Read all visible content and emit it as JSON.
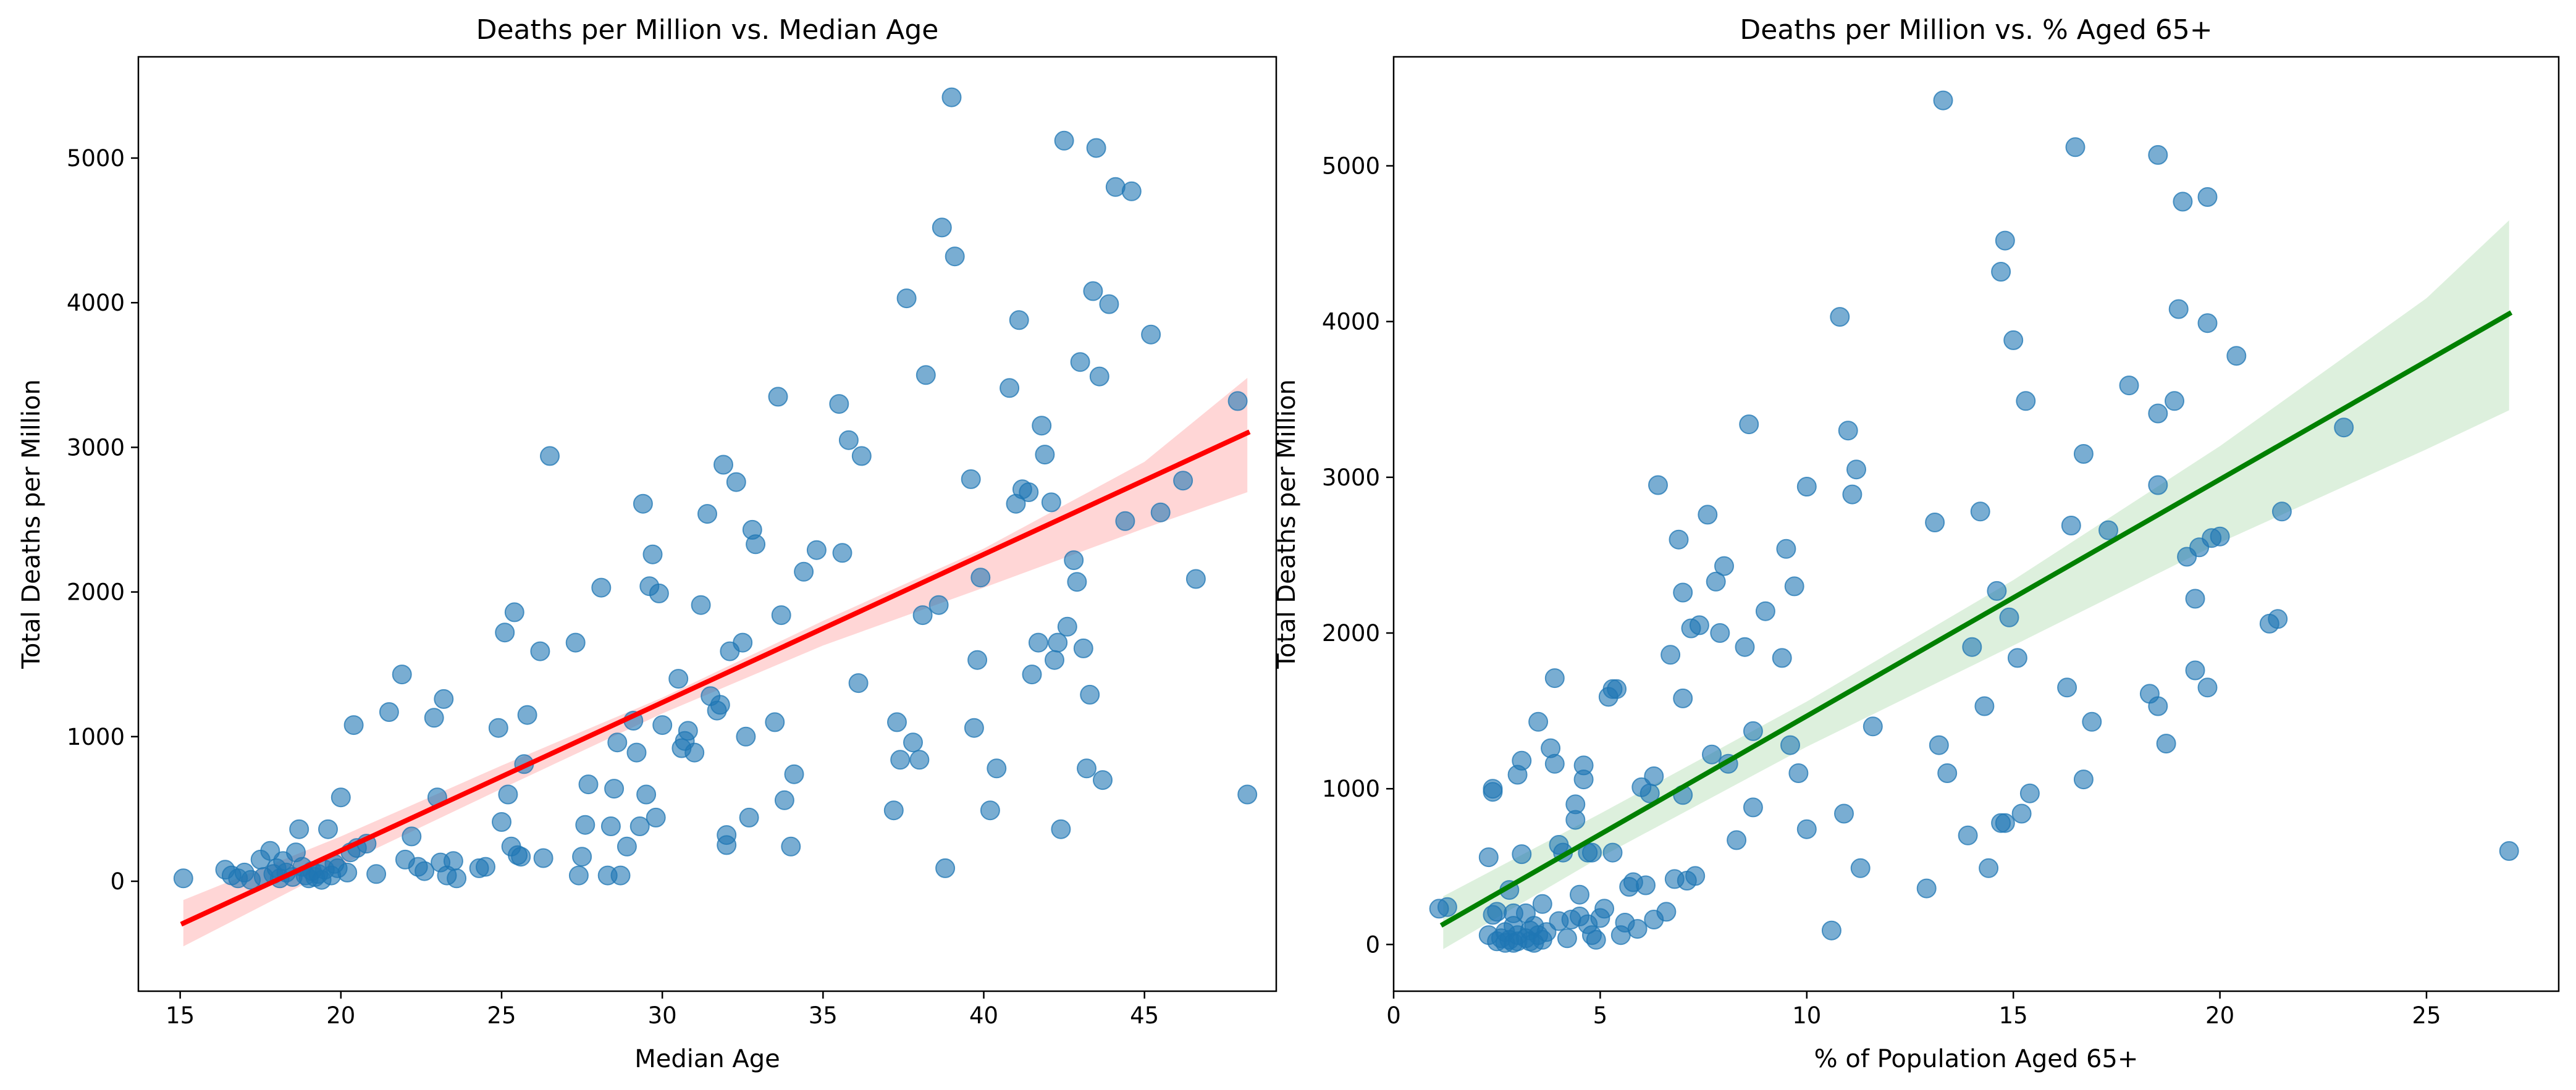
{
  "chart_data": [
    {
      "type": "scatter",
      "title": "Deaths per Million vs. Median Age",
      "xlabel": "Median Age",
      "ylabel": "Total Deaths per Million",
      "xlim": [
        13.7,
        49.1
      ],
      "ylim": [
        -760,
        5700
      ],
      "xticks": [
        15,
        20,
        25,
        30,
        35,
        40,
        45
      ],
      "yticks": [
        0,
        1000,
        2000,
        3000,
        4000,
        5000
      ],
      "point_color": "#1f77b4",
      "fit_color": "#ff0000",
      "ci_color": "#ff0000",
      "grid": false,
      "fit_line": {
        "x": [
          15.1,
          48.2
        ],
        "y": [
          -290,
          3100
        ]
      },
      "ci_band": {
        "x": [
          15.1,
          20,
          25,
          30,
          35,
          40,
          45,
          48.2
        ],
        "lower": [
          -450,
          110,
          640,
          1160,
          1630,
          2030,
          2440,
          2690
        ],
        "upper": [
          -130,
          310,
          800,
          1270,
          1800,
          2300,
          2900,
          3480
        ]
      },
      "points": [
        [
          15.1,
          20
        ],
        [
          16.4,
          80
        ],
        [
          16.6,
          40
        ],
        [
          16.8,
          20
        ],
        [
          17.0,
          60
        ],
        [
          17.2,
          10
        ],
        [
          17.5,
          150
        ],
        [
          17.6,
          30
        ],
        [
          17.8,
          210
        ],
        [
          17.9,
          50
        ],
        [
          18.0,
          90
        ],
        [
          18.1,
          20
        ],
        [
          18.2,
          140
        ],
        [
          18.3,
          60
        ],
        [
          18.5,
          30
        ],
        [
          18.6,
          200
        ],
        [
          18.7,
          360
        ],
        [
          18.8,
          100
        ],
        [
          18.9,
          40
        ],
        [
          19.0,
          20
        ],
        [
          19.1,
          70
        ],
        [
          19.2,
          30
        ],
        [
          19.3,
          50
        ],
        [
          19.4,
          10
        ],
        [
          19.5,
          80
        ],
        [
          19.6,
          360
        ],
        [
          19.7,
          40
        ],
        [
          19.8,
          120
        ],
        [
          19.9,
          90
        ],
        [
          20.0,
          580
        ],
        [
          20.2,
          60
        ],
        [
          20.3,
          200
        ],
        [
          20.4,
          1080
        ],
        [
          20.5,
          230
        ],
        [
          20.8,
          260
        ],
        [
          21.1,
          50
        ],
        [
          21.5,
          1170
        ],
        [
          21.9,
          1430
        ],
        [
          22.0,
          150
        ],
        [
          22.2,
          310
        ],
        [
          22.4,
          100
        ],
        [
          22.6,
          70
        ],
        [
          22.9,
          1130
        ],
        [
          23.0,
          580
        ],
        [
          23.1,
          130
        ],
        [
          23.2,
          1260
        ],
        [
          23.3,
          40
        ],
        [
          23.5,
          140
        ],
        [
          23.6,
          20
        ],
        [
          24.3,
          90
        ],
        [
          24.5,
          100
        ],
        [
          24.9,
          1060
        ],
        [
          25.0,
          410
        ],
        [
          25.1,
          1720
        ],
        [
          25.2,
          600
        ],
        [
          25.3,
          240
        ],
        [
          25.4,
          1860
        ],
        [
          25.5,
          180
        ],
        [
          25.6,
          170
        ],
        [
          25.7,
          810
        ],
        [
          25.8,
          1150
        ],
        [
          26.2,
          1590
        ],
        [
          26.3,
          160
        ],
        [
          26.5,
          2940
        ],
        [
          27.3,
          1650
        ],
        [
          27.4,
          40
        ],
        [
          27.5,
          170
        ],
        [
          27.6,
          390
        ],
        [
          27.7,
          670
        ],
        [
          28.1,
          2030
        ],
        [
          28.3,
          40
        ],
        [
          28.4,
          380
        ],
        [
          28.5,
          640
        ],
        [
          28.6,
          960
        ],
        [
          28.7,
          40
        ],
        [
          28.9,
          240
        ],
        [
          29.1,
          1110
        ],
        [
          29.2,
          890
        ],
        [
          29.3,
          380
        ],
        [
          29.4,
          2610
        ],
        [
          29.5,
          600
        ],
        [
          29.6,
          2040
        ],
        [
          29.7,
          2260
        ],
        [
          29.8,
          440
        ],
        [
          29.9,
          1990
        ],
        [
          30.0,
          1080
        ],
        [
          30.5,
          1400
        ],
        [
          30.6,
          920
        ],
        [
          30.7,
          970
        ],
        [
          30.8,
          1040
        ],
        [
          31.0,
          890
        ],
        [
          31.2,
          1910
        ],
        [
          31.4,
          2540
        ],
        [
          31.5,
          1280
        ],
        [
          31.7,
          1180
        ],
        [
          31.8,
          1220
        ],
        [
          31.9,
          2880
        ],
        [
          32.0,
          320
        ],
        [
          32.0,
          250
        ],
        [
          32.1,
          1590
        ],
        [
          32.3,
          2760
        ],
        [
          32.5,
          1650
        ],
        [
          32.6,
          1000
        ],
        [
          32.7,
          440
        ],
        [
          32.8,
          2430
        ],
        [
          32.9,
          2330
        ],
        [
          33.5,
          1100
        ],
        [
          33.6,
          3350
        ],
        [
          33.7,
          1840
        ],
        [
          33.8,
          560
        ],
        [
          34.0,
          240
        ],
        [
          34.1,
          740
        ],
        [
          34.4,
          2140
        ],
        [
          34.8,
          2290
        ],
        [
          35.5,
          3300
        ],
        [
          35.6,
          2270
        ],
        [
          35.8,
          3050
        ],
        [
          36.1,
          1370
        ],
        [
          36.2,
          2940
        ],
        [
          37.2,
          490
        ],
        [
          37.3,
          1100
        ],
        [
          37.4,
          840
        ],
        [
          37.6,
          4030
        ],
        [
          37.8,
          960
        ],
        [
          38.0,
          840
        ],
        [
          38.1,
          1840
        ],
        [
          38.2,
          3500
        ],
        [
          38.6,
          1910
        ],
        [
          38.7,
          4520
        ],
        [
          38.8,
          90
        ],
        [
          39.0,
          5420
        ],
        [
          39.1,
          4320
        ],
        [
          39.6,
          2780
        ],
        [
          39.7,
          1060
        ],
        [
          39.8,
          1530
        ],
        [
          39.9,
          2100
        ],
        [
          40.2,
          490
        ],
        [
          40.4,
          780
        ],
        [
          40.8,
          3410
        ],
        [
          41.0,
          2610
        ],
        [
          41.1,
          3880
        ],
        [
          41.2,
          2710
        ],
        [
          41.4,
          2690
        ],
        [
          41.5,
          1430
        ],
        [
          41.7,
          1650
        ],
        [
          41.8,
          3150
        ],
        [
          41.9,
          2950
        ],
        [
          42.1,
          2620
        ],
        [
          42.2,
          1530
        ],
        [
          42.3,
          1650
        ],
        [
          42.4,
          360
        ],
        [
          42.5,
          5120
        ],
        [
          42.6,
          1760
        ],
        [
          42.8,
          2220
        ],
        [
          42.9,
          2070
        ],
        [
          43.0,
          3590
        ],
        [
          43.1,
          1610
        ],
        [
          43.2,
          780
        ],
        [
          43.3,
          1290
        ],
        [
          43.4,
          4080
        ],
        [
          43.5,
          5070
        ],
        [
          43.6,
          3490
        ],
        [
          43.7,
          700
        ],
        [
          43.9,
          3990
        ],
        [
          44.1,
          4800
        ],
        [
          44.4,
          2490
        ],
        [
          44.6,
          4770
        ],
        [
          45.2,
          3780
        ],
        [
          45.5,
          2550
        ],
        [
          46.2,
          2770
        ],
        [
          46.6,
          2090
        ],
        [
          47.9,
          3320
        ],
        [
          48.2,
          600
        ]
      ]
    },
    {
      "type": "scatter",
      "title": "Deaths per Million vs. % Aged 65+",
      "xlabel": "% of Population Aged 65+",
      "ylabel": "Total Deaths per Million",
      "xlim": [
        0,
        28.2
      ],
      "ylim": [
        -300,
        5700
      ],
      "xticks": [
        0,
        5,
        10,
        15,
        20,
        25
      ],
      "yticks": [
        0,
        1000,
        2000,
        3000,
        4000,
        5000
      ],
      "point_color": "#1f77b4",
      "fit_color": "#008000",
      "ci_color": "#2ca02c",
      "grid": false,
      "fit_line": {
        "x": [
          1.2,
          27.0
        ],
        "y": [
          130,
          4050
        ]
      },
      "ci_band": {
        "x": [
          1.2,
          5,
          10,
          15,
          20,
          25,
          27.0
        ],
        "lower": [
          -30,
          560,
          1270,
          1920,
          2580,
          3180,
          3430
        ],
        "upper": [
          310,
          840,
          1560,
          2340,
          3200,
          4150,
          4650
        ]
      },
      "points": [
        [
          1.1,
          230
        ],
        [
          1.3,
          240
        ],
        [
          2.3,
          560
        ],
        [
          2.4,
          1000
        ],
        [
          2.4,
          980
        ],
        [
          2.3,
          60
        ],
        [
          2.4,
          190
        ],
        [
          2.5,
          20
        ],
        [
          2.5,
          210
        ],
        [
          2.6,
          40
        ],
        [
          2.7,
          10
        ],
        [
          2.7,
          80
        ],
        [
          2.8,
          30
        ],
        [
          2.8,
          350
        ],
        [
          2.9,
          10
        ],
        [
          2.9,
          200
        ],
        [
          2.9,
          120
        ],
        [
          3.0,
          60
        ],
        [
          3.0,
          1090
        ],
        [
          3.0,
          20
        ],
        [
          3.1,
          1180
        ],
        [
          3.1,
          580
        ],
        [
          3.2,
          40
        ],
        [
          3.2,
          200
        ],
        [
          3.3,
          20
        ],
        [
          3.3,
          90
        ],
        [
          3.4,
          10
        ],
        [
          3.4,
          120
        ],
        [
          3.5,
          60
        ],
        [
          3.5,
          1430
        ],
        [
          3.6,
          30
        ],
        [
          3.6,
          260
        ],
        [
          3.7,
          80
        ],
        [
          3.8,
          1260
        ],
        [
          3.9,
          1710
        ],
        [
          3.9,
          1160
        ],
        [
          4.0,
          150
        ],
        [
          4.0,
          640
        ],
        [
          4.1,
          590
        ],
        [
          4.2,
          40
        ],
        [
          4.3,
          160
        ],
        [
          4.4,
          900
        ],
        [
          4.4,
          800
        ],
        [
          4.5,
          320
        ],
        [
          4.5,
          180
        ],
        [
          4.6,
          1060
        ],
        [
          4.6,
          1150
        ],
        [
          4.7,
          130
        ],
        [
          4.7,
          590
        ],
        [
          4.8,
          60
        ],
        [
          4.8,
          590
        ],
        [
          4.9,
          30
        ],
        [
          5.0,
          170
        ],
        [
          5.1,
          230
        ],
        [
          5.2,
          1590
        ],
        [
          5.3,
          590
        ],
        [
          5.3,
          1640
        ],
        [
          5.4,
          1640
        ],
        [
          5.5,
          60
        ],
        [
          5.6,
          140
        ],
        [
          5.7,
          370
        ],
        [
          5.8,
          400
        ],
        [
          5.9,
          100
        ],
        [
          6.0,
          1010
        ],
        [
          6.1,
          380
        ],
        [
          6.2,
          970
        ],
        [
          6.3,
          160
        ],
        [
          6.3,
          1080
        ],
        [
          6.4,
          2950
        ],
        [
          6.6,
          210
        ],
        [
          6.7,
          1860
        ],
        [
          6.8,
          420
        ],
        [
          6.9,
          2600
        ],
        [
          7.0,
          2260
        ],
        [
          7.0,
          1580
        ],
        [
          7.0,
          960
        ],
        [
          7.1,
          410
        ],
        [
          7.2,
          2030
        ],
        [
          7.3,
          440
        ],
        [
          7.4,
          2050
        ],
        [
          7.6,
          2760
        ],
        [
          7.7,
          1220
        ],
        [
          7.8,
          2330
        ],
        [
          7.9,
          2000
        ],
        [
          8.0,
          2430
        ],
        [
          8.1,
          1160
        ],
        [
          8.3,
          670
        ],
        [
          8.5,
          1910
        ],
        [
          8.6,
          3340
        ],
        [
          8.7,
          1370
        ],
        [
          8.7,
          880
        ],
        [
          9.0,
          2140
        ],
        [
          9.4,
          1840
        ],
        [
          9.5,
          2540
        ],
        [
          9.6,
          1280
        ],
        [
          9.7,
          2300
        ],
        [
          9.8,
          1100
        ],
        [
          10.0,
          740
        ],
        [
          10.0,
          2940
        ],
        [
          10.6,
          90
        ],
        [
          10.8,
          4030
        ],
        [
          10.9,
          840
        ],
        [
          11.0,
          3300
        ],
        [
          11.1,
          2890
        ],
        [
          11.2,
          3050
        ],
        [
          11.3,
          490
        ],
        [
          11.6,
          1400
        ],
        [
          12.9,
          360
        ],
        [
          13.1,
          2710
        ],
        [
          13.2,
          1280
        ],
        [
          13.3,
          5420
        ],
        [
          13.4,
          1100
        ],
        [
          13.9,
          700
        ],
        [
          14.0,
          1910
        ],
        [
          14.2,
          2780
        ],
        [
          14.3,
          1530
        ],
        [
          14.4,
          490
        ],
        [
          14.6,
          2270
        ],
        [
          14.7,
          4320
        ],
        [
          14.7,
          780
        ],
        [
          14.8,
          780
        ],
        [
          14.8,
          4520
        ],
        [
          14.9,
          2100
        ],
        [
          15.0,
          3880
        ],
        [
          15.1,
          1840
        ],
        [
          15.2,
          840
        ],
        [
          15.3,
          3490
        ],
        [
          15.4,
          970
        ],
        [
          16.3,
          1650
        ],
        [
          16.4,
          2690
        ],
        [
          16.5,
          5120
        ],
        [
          16.7,
          3150
        ],
        [
          16.7,
          1060
        ],
        [
          16.9,
          1430
        ],
        [
          17.3,
          2660
        ],
        [
          17.8,
          3590
        ],
        [
          18.3,
          1610
        ],
        [
          18.5,
          2950
        ],
        [
          18.5,
          3410
        ],
        [
          18.5,
          5070
        ],
        [
          18.5,
          1530
        ],
        [
          18.7,
          1290
        ],
        [
          18.9,
          3490
        ],
        [
          19.0,
          4080
        ],
        [
          19.1,
          4770
        ],
        [
          19.2,
          2490
        ],
        [
          19.4,
          1760
        ],
        [
          19.4,
          2220
        ],
        [
          19.5,
          2550
        ],
        [
          19.7,
          4800
        ],
        [
          19.7,
          3990
        ],
        [
          19.7,
          1650
        ],
        [
          19.8,
          2610
        ],
        [
          20.0,
          2620
        ],
        [
          20.4,
          3780
        ],
        [
          21.2,
          2060
        ],
        [
          21.4,
          2090
        ],
        [
          21.5,
          2780
        ],
        [
          23.0,
          3320
        ],
        [
          27.0,
          600
        ]
      ]
    }
  ]
}
